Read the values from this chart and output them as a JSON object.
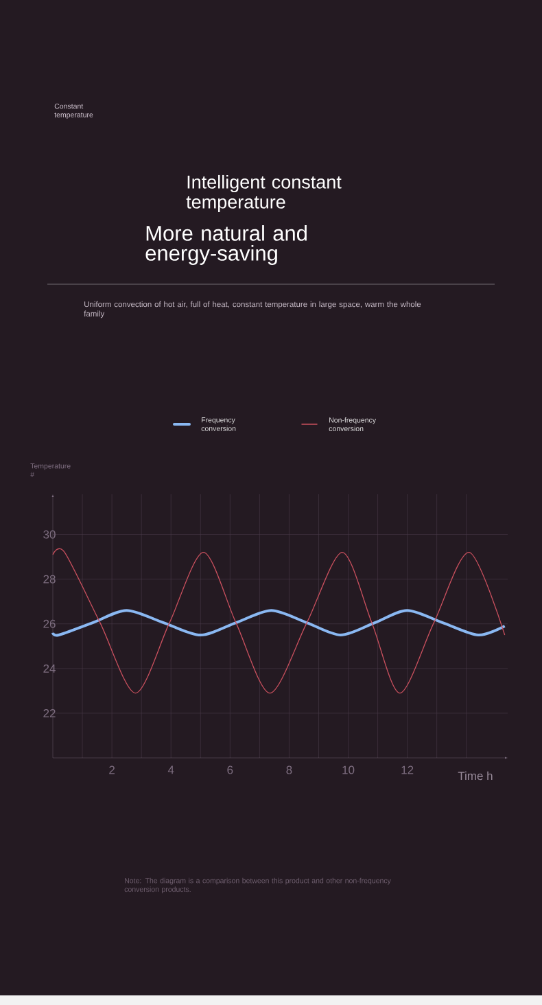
{
  "chart_data": {
    "type": "line",
    "title": "Intelligent constant temperature",
    "subtitle": "More natural and energy-saving",
    "xlabel": "Time h",
    "ylabel": "Temperature #",
    "annotations": [
      "Constant temperature",
      "Uniform convection of hot air, full of heat, constant temperature in large space, warm the whole family",
      "Note: The diagram is a comparison between this product and other non-frequency conversion products."
    ],
    "xlim": [
      0,
      15.4
    ],
    "ylim": [
      20,
      31.8
    ],
    "xticks": [
      {
        "value": 1,
        "label": null
      },
      2,
      {
        "value": 3,
        "label": null
      },
      4,
      {
        "value": 5,
        "label": null
      },
      6,
      {
        "value": 7,
        "label": null
      },
      8,
      {
        "value": 9,
        "label": null
      },
      10,
      {
        "value": 11,
        "label": null
      },
      12,
      {
        "value": 13,
        "label": null
      },
      {
        "value": 14,
        "label": null
      }
    ],
    "yticks": [
      22,
      24,
      26,
      28,
      30
    ],
    "grid": true,
    "legend": "top",
    "marker": "none",
    "line_style": "solid",
    "series": [
      {
        "name": "Frequency conversion",
        "color": "#8ab8f2",
        "x": [
          0,
          0.2,
          1.35,
          2.5,
          3.75,
          5.0,
          6.2,
          7.4,
          8.6,
          9.75,
          10.9,
          12.0,
          13.2,
          14.4,
          15.3
        ],
        "values": [
          25.6,
          25.5,
          26.05,
          26.6,
          26.05,
          25.5,
          26.05,
          26.6,
          26.05,
          25.5,
          26.05,
          26.6,
          26.05,
          25.5,
          25.9
        ]
      },
      {
        "name": "Non-frequency conversion",
        "color": "#c9505e",
        "x": [
          0,
          0.4,
          1.6,
          2.8,
          3.95,
          5.1,
          6.2,
          7.35,
          8.6,
          9.8,
          10.8,
          11.75,
          12.9,
          14.1,
          15.3
        ],
        "values": [
          29.1,
          29.2,
          26.05,
          22.9,
          26.05,
          29.2,
          26.05,
          22.9,
          26.05,
          29.2,
          26.05,
          22.9,
          26.05,
          29.2,
          25.5
        ]
      }
    ]
  }
}
